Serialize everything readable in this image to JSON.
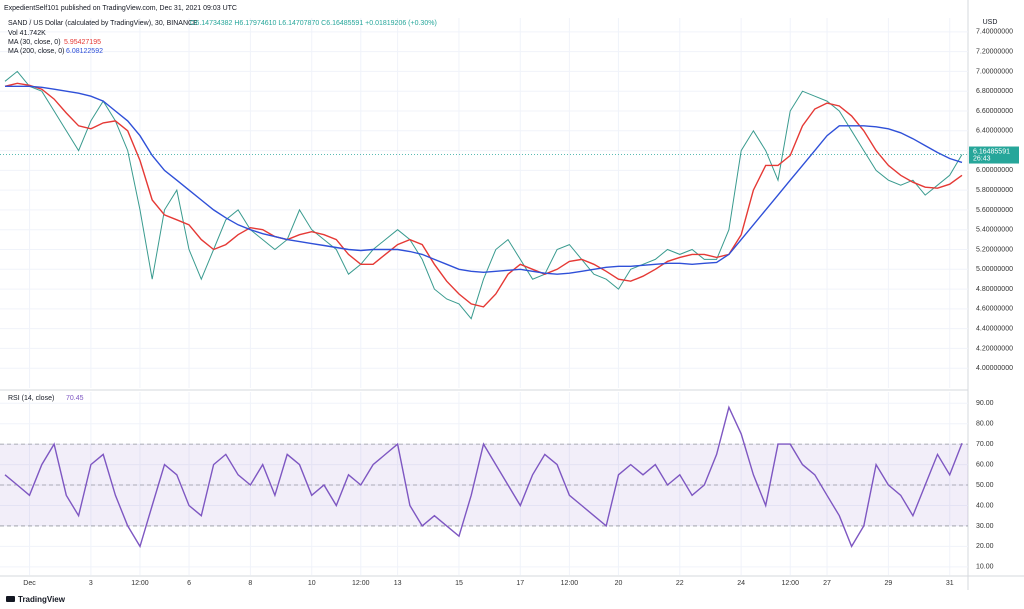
{
  "header": {
    "publisher": "ExpedientSelf101 published on TradingView.com, Dec 31, 2021 09:03 UTC",
    "footer": "TradingView"
  },
  "chart_data": [
    {
      "type": "line",
      "ohlc": "O6.14734382 H6.17974610 L6.14707870 C6.16485591 +0.01819206 (+0.30%)",
      "volume": "Vol 41.742K",
      "currency": "USD",
      "price_tag": "6.16485591",
      "countdown": "26:43",
      "categories": [
        null,
        null,
        "Dec",
        null,
        null,
        null,
        null,
        "3",
        null,
        null,
        null,
        "12:00",
        null,
        null,
        null,
        "6",
        null,
        null,
        null,
        null,
        "8",
        null,
        null,
        null,
        null,
        "10",
        null,
        null,
        null,
        "12:00",
        null,
        null,
        "13",
        null,
        null,
        null,
        null,
        "15",
        null,
        null,
        null,
        null,
        "17",
        null,
        null,
        null,
        "12:00",
        null,
        null,
        null,
        "20",
        null,
        null,
        null,
        null,
        "22",
        null,
        null,
        null,
        null,
        "24",
        null,
        null,
        null,
        "12:00",
        null,
        null,
        "27",
        null,
        null,
        null,
        null,
        "29",
        null,
        null,
        null,
        null,
        "31",
        null
      ],
      "series": [
        {
          "name": "SAND / US Dollar (calculated by TradingView), 30, BINANCE",
          "color": "#3a9b8f",
          "values": [
            6.9,
            7.0,
            6.85,
            6.8,
            6.6,
            6.4,
            6.2,
            6.5,
            6.7,
            6.5,
            6.2,
            5.6,
            4.9,
            5.6,
            5.8,
            5.2,
            4.9,
            5.2,
            5.5,
            5.6,
            5.4,
            5.3,
            5.2,
            5.3,
            5.6,
            5.4,
            5.3,
            5.2,
            4.95,
            5.05,
            5.2,
            5.3,
            5.4,
            5.3,
            5.1,
            4.8,
            4.7,
            4.65,
            4.5,
            4.9,
            5.2,
            5.3,
            5.1,
            4.9,
            4.95,
            5.2,
            5.25,
            5.1,
            4.95,
            4.9,
            4.8,
            5.0,
            5.05,
            5.1,
            5.2,
            5.15,
            5.2,
            5.1,
            5.1,
            5.4,
            6.2,
            6.4,
            6.2,
            5.9,
            6.6,
            6.8,
            6.75,
            6.7,
            6.6,
            6.4,
            6.2,
            6.0,
            5.9,
            5.85,
            5.9,
            5.75,
            5.85,
            5.95,
            6.16
          ]
        },
        {
          "name": "MA (30, close, 0)",
          "legend_value": "5.95427195",
          "color": "#e53935",
          "values": [
            6.85,
            6.88,
            6.86,
            6.82,
            6.72,
            6.58,
            6.45,
            6.42,
            6.48,
            6.5,
            6.4,
            6.1,
            5.7,
            5.55,
            5.5,
            5.45,
            5.3,
            5.2,
            5.25,
            5.35,
            5.42,
            5.4,
            5.33,
            5.3,
            5.35,
            5.38,
            5.35,
            5.3,
            5.15,
            5.05,
            5.05,
            5.15,
            5.25,
            5.3,
            5.25,
            5.05,
            4.88,
            4.75,
            4.65,
            4.62,
            4.75,
            4.95,
            5.05,
            5.0,
            4.95,
            5.0,
            5.08,
            5.1,
            5.05,
            4.98,
            4.9,
            4.88,
            4.93,
            5.0,
            5.08,
            5.12,
            5.15,
            5.15,
            5.12,
            5.15,
            5.35,
            5.8,
            6.05,
            6.05,
            6.15,
            6.45,
            6.62,
            6.68,
            6.65,
            6.55,
            6.4,
            6.2,
            6.05,
            5.95,
            5.88,
            5.83,
            5.82,
            5.86,
            5.95
          ]
        },
        {
          "name": "MA (200, close, 0)",
          "legend_value": "6.08122592",
          "color": "#2f50d8",
          "values": [
            6.85,
            6.85,
            6.85,
            6.84,
            6.82,
            6.8,
            6.78,
            6.75,
            6.7,
            6.6,
            6.5,
            6.35,
            6.15,
            6.0,
            5.9,
            5.8,
            5.7,
            5.6,
            5.52,
            5.45,
            5.4,
            5.36,
            5.33,
            5.3,
            5.28,
            5.26,
            5.24,
            5.22,
            5.2,
            5.19,
            5.2,
            5.2,
            5.2,
            5.18,
            5.15,
            5.1,
            5.05,
            5.0,
            4.98,
            4.97,
            4.98,
            4.99,
            5.0,
            4.98,
            4.96,
            4.95,
            4.96,
            4.98,
            5.0,
            5.02,
            5.03,
            5.03,
            5.04,
            5.05,
            5.06,
            5.06,
            5.05,
            5.06,
            5.07,
            5.15,
            5.3,
            5.45,
            5.6,
            5.75,
            5.9,
            6.05,
            6.2,
            6.35,
            6.45,
            6.45,
            6.45,
            6.44,
            6.42,
            6.38,
            6.32,
            6.25,
            6.18,
            6.12,
            6.08
          ]
        }
      ],
      "ylim": [
        3.8,
        7.54
      ],
      "yticks": [
        {
          "value": 4.0,
          "label": "4.00000000"
        },
        {
          "value": 4.2,
          "label": "4.20000000"
        },
        {
          "value": 4.4,
          "label": "4.40000000"
        },
        {
          "value": 4.6,
          "label": "4.60000000"
        },
        {
          "value": 4.8,
          "label": "4.80000000"
        },
        {
          "value": 5.0,
          "label": "5.00000000"
        },
        {
          "value": 5.2,
          "label": "5.20000000"
        },
        {
          "value": 5.4,
          "label": "5.40000000"
        },
        {
          "value": 5.6,
          "label": "5.60000000"
        },
        {
          "value": 5.8,
          "label": "5.80000000"
        },
        {
          "value": 6.0,
          "label": "6.00000000"
        },
        {
          "value": 6.2,
          "label": "6.20000000"
        },
        {
          "value": 6.4,
          "label": "6.40000000"
        },
        {
          "value": 6.6,
          "label": "6.60000000"
        },
        {
          "value": 6.8,
          "label": "6.80000000"
        },
        {
          "value": 7.0,
          "label": "7.00000000"
        },
        {
          "value": 7.2,
          "label": "7.20000000"
        },
        {
          "value": 7.4,
          "label": "7.40000000"
        }
      ],
      "grid": true
    },
    {
      "type": "line",
      "series": [
        {
          "name": "RSI (14, close)",
          "legend_value": "70.45",
          "color": "#7e57c2",
          "values": [
            55,
            50,
            45,
            60,
            70,
            45,
            35,
            60,
            65,
            45,
            30,
            20,
            40,
            60,
            55,
            40,
            35,
            60,
            65,
            55,
            50,
            60,
            45,
            65,
            60,
            45,
            50,
            40,
            55,
            50,
            60,
            65,
            70,
            40,
            30,
            35,
            30,
            25,
            45,
            70,
            60,
            50,
            40,
            55,
            65,
            60,
            45,
            40,
            35,
            30,
            55,
            60,
            55,
            60,
            50,
            55,
            45,
            50,
            65,
            88,
            75,
            55,
            40,
            70,
            70,
            60,
            55,
            45,
            35,
            20,
            30,
            60,
            50,
            45,
            35,
            50,
            65,
            55,
            70.45
          ]
        }
      ],
      "band": [
        30,
        70
      ],
      "midline": 50,
      "ylim": [
        6,
        95.5
      ],
      "yticks": [
        {
          "value": 10,
          "label": "10.00"
        },
        {
          "value": 20,
          "label": "20.00"
        },
        {
          "value": 30,
          "label": "30.00"
        },
        {
          "value": 40,
          "label": "40.00"
        },
        {
          "value": 50,
          "label": "50.00"
        },
        {
          "value": 60,
          "label": "60.00"
        },
        {
          "value": 70,
          "label": "70.00"
        },
        {
          "value": 80,
          "label": "80.00"
        },
        {
          "value": 90,
          "label": "90.00"
        }
      ],
      "grid": true
    }
  ]
}
